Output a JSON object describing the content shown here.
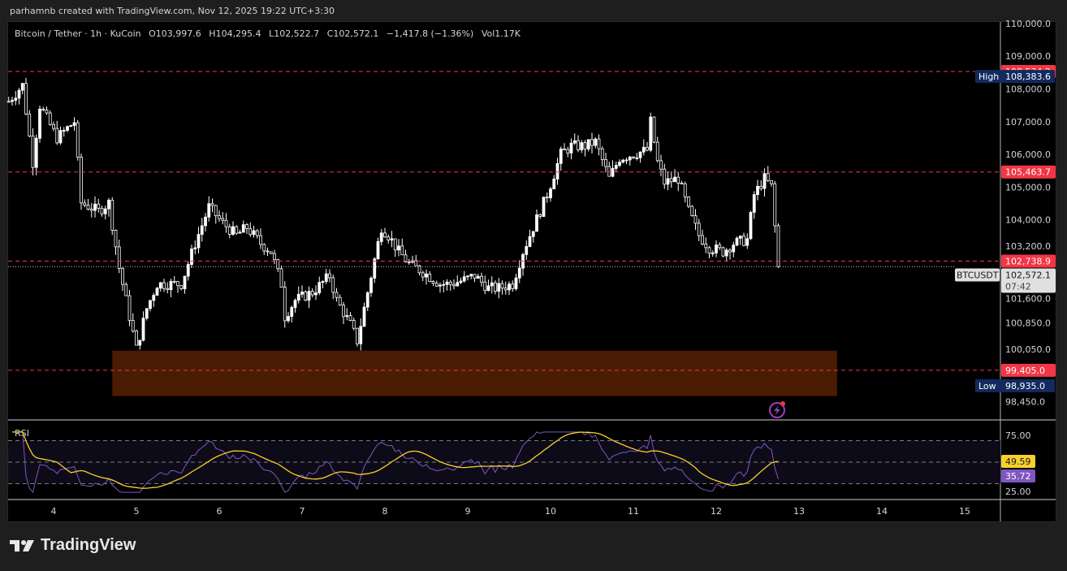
{
  "credit": "parhamnb created with TradingView.com, Nov 12, 2025 19:22 UTC+3:30",
  "legend": {
    "symbol": "Bitcoin / Tether · 1h · KuCoin",
    "open": "O103,997.6",
    "high": "H104,295.4",
    "low": "L102,522.7",
    "close": "C102,572.1",
    "change": "−1,417.8 (−1.36%)",
    "volume": "Vol1.17K"
  },
  "brand": "TradingView",
  "chart_data": [
    {
      "type": "candlestick",
      "symbol": "BTCUSDT",
      "interval": "1h",
      "price_ticks": [
        "110,000.0",
        "109,000.0",
        "108,000.0",
        "107,000.0",
        "106,000.0",
        "105,000.0",
        "104,000.0",
        "103,200.0",
        "101,600.0",
        "100,850.0",
        "100,050.0",
        "98,450.0"
      ],
      "time_ticks": [
        "4",
        "5",
        "6",
        "7",
        "8",
        "9",
        "10",
        "11",
        "12",
        "13",
        "14",
        "15"
      ],
      "approx_close_path": [
        [
          "2025-11-03T11:00",
          107620
        ],
        [
          "2025-11-03T15:00",
          108115
        ],
        [
          "2025-11-03T18:00",
          105760
        ],
        [
          "2025-11-03T20:00",
          107495
        ],
        [
          "2025-11-04T01:00",
          106500
        ],
        [
          "2025-11-04T06:00",
          107000
        ],
        [
          "2025-11-04T08:00",
          104520
        ],
        [
          "2025-11-04T13:00",
          104270
        ],
        [
          "2025-11-04T16:00",
          104520
        ],
        [
          "2025-11-04T19:00",
          102535
        ],
        [
          "2025-11-04T22:00",
          101050
        ],
        [
          "2025-11-05T00:00",
          100055
        ],
        [
          "2025-11-05T03:00",
          101295
        ],
        [
          "2025-11-05T06:00",
          102040
        ],
        [
          "2025-11-05T10:00",
          102040
        ],
        [
          "2025-11-05T13:00",
          102040
        ],
        [
          "2025-11-05T17:00",
          103280
        ],
        [
          "2025-11-05T21:00",
          104395
        ],
        [
          "2025-11-06T01:00",
          103900
        ],
        [
          "2025-11-06T05:00",
          103530
        ],
        [
          "2025-11-06T08:00",
          103775
        ],
        [
          "2025-11-06T12:00",
          103280
        ],
        [
          "2025-11-06T15:00",
          103030
        ],
        [
          "2025-11-06T18:00",
          102040
        ],
        [
          "2025-11-06T19:00",
          101050
        ],
        [
          "2025-11-06T22:00",
          101545
        ],
        [
          "2025-11-07T03:00",
          101790
        ],
        [
          "2025-11-07T08:00",
          102290
        ],
        [
          "2025-11-07T10:00",
          101545
        ],
        [
          "2025-11-07T14:00",
          100800
        ],
        [
          "2025-11-07T16:00",
          100305
        ],
        [
          "2025-11-07T18:00",
          101295
        ],
        [
          "2025-11-07T21:00",
          102785
        ],
        [
          "2025-11-07T23:00",
          103775
        ],
        [
          "2025-11-08T01:00",
          103530
        ],
        [
          "2025-11-08T04:00",
          103030
        ],
        [
          "2025-11-08T07:00",
          102660
        ],
        [
          "2025-11-08T11:00",
          102410
        ],
        [
          "2025-11-08T16:00",
          102040
        ],
        [
          "2025-11-08T19:00",
          102040
        ],
        [
          "2025-11-08T23:00",
          102165
        ],
        [
          "2025-11-09T02:00",
          102290
        ],
        [
          "2025-11-09T06:00",
          101915
        ],
        [
          "2025-11-09T09:00",
          101915
        ],
        [
          "2025-11-09T13:00",
          102040
        ],
        [
          "2025-11-09T16:00",
          103030
        ],
        [
          "2025-11-09T20:00",
          104025
        ],
        [
          "2025-11-09T23:00",
          104770
        ],
        [
          "2025-11-10T03:00",
          106010
        ],
        [
          "2025-11-10T06:00",
          106255
        ],
        [
          "2025-11-10T10:00",
          106255
        ],
        [
          "2025-11-10T13:00",
          106380
        ],
        [
          "2025-11-10T17:00",
          105265
        ],
        [
          "2025-11-10T20:00",
          105885
        ],
        [
          "2025-11-11T00:00",
          106010
        ],
        [
          "2025-11-11T04:00",
          106130
        ],
        [
          "2025-11-11T05:00",
          107000
        ],
        [
          "2025-11-11T07:00",
          105760
        ],
        [
          "2025-11-11T09:00",
          105140
        ],
        [
          "2025-11-11T13:00",
          105265
        ],
        [
          "2025-11-11T16:00",
          104270
        ],
        [
          "2025-11-11T19:00",
          103530
        ],
        [
          "2025-11-11T22:00",
          103155
        ],
        [
          "2025-11-12T02:00",
          103030
        ],
        [
          "2025-11-12T05:00",
          103280
        ],
        [
          "2025-11-12T09:00",
          103400
        ],
        [
          "2025-11-12T11:00",
          104770
        ],
        [
          "2025-11-12T14:00",
          105265
        ],
        [
          "2025-11-12T16:00",
          105015
        ],
        [
          "2025-11-12T18:00",
          102572.1
        ]
      ],
      "horizontal_lines": [
        {
          "price": 108534.2,
          "label": "108,534.2",
          "color": "#f23645"
        },
        {
          "price": 105463.7,
          "label": "105,463.7",
          "color": "#f23645"
        },
        {
          "price": 102738.9,
          "label": "102,738.9",
          "color": "#f23645"
        },
        {
          "price": 99405.0,
          "label": "99,405.0",
          "color": "#f23645"
        }
      ],
      "high_marker": {
        "label": "High",
        "value": "108,383.6",
        "price": 108383.6
      },
      "low_marker": {
        "label": "Low",
        "value": "98,935.0",
        "price": 98935.0
      },
      "last_price": {
        "symbol": "BTCUSDT",
        "value": "102,572.1",
        "countdown": "07:42",
        "price": 102572.1
      },
      "zone": {
        "price_top": 100005,
        "price_bottom": 98620,
        "time_start": "2025-11-04T17:00",
        "time_end": "2025-11-13T11:00",
        "color": "#4a1c03"
      },
      "colors": {
        "up": "#ffffff",
        "down": "#ffffff",
        "background": "#000000"
      }
    },
    {
      "type": "line",
      "title": "RSI",
      "y_ticks": [
        "75.00",
        "25.00"
      ],
      "levels": [
        70,
        50,
        30
      ],
      "ylim": [
        20,
        80
      ],
      "series": [
        {
          "key": "rsi",
          "color": "#7e57c2",
          "last_label": "35.72"
        },
        {
          "key": "rsi_ma",
          "color": "#f7d02c",
          "last_label": "49.59"
        }
      ]
    }
  ],
  "icons": {
    "alert": "lightning-icon"
  }
}
